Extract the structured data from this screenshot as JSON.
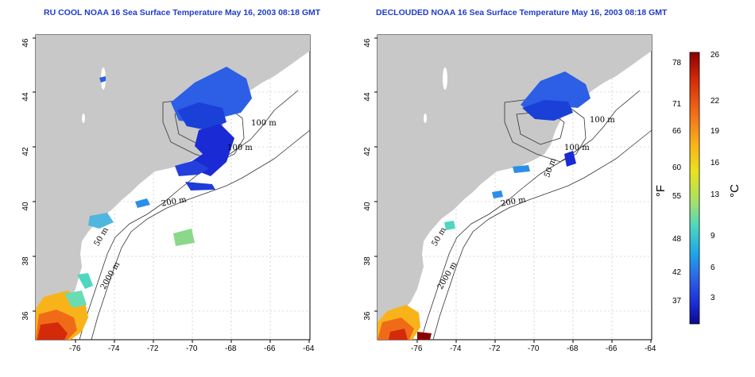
{
  "maps": [
    {
      "id": "left",
      "title": "RU COOL NOAA 16 Sea Surface Temperature May 16, 2003 08:18 GMT",
      "x_ticks": [
        "-76",
        "-74",
        "-72",
        "-70",
        "-68",
        "-66",
        "-64"
      ],
      "y_ticks": [
        "46",
        "44",
        "42",
        "40",
        "38",
        "36"
      ],
      "isobaths": [
        "100 m",
        "100 m",
        "200 m",
        "50 m",
        "2000 m"
      ]
    },
    {
      "id": "right",
      "title": "DECLOUDED NOAA 16 Sea Surface Temperature May 16, 2003 08:18 GMT",
      "x_ticks": [
        "-76",
        "-74",
        "-72",
        "-70",
        "-68",
        "-66",
        "-64"
      ],
      "y_ticks": [
        "46",
        "44",
        "42",
        "40",
        "38",
        "36"
      ],
      "isobaths": [
        "100 m",
        "100 m",
        "200 m",
        "50 m",
        "50 m",
        "2000 m"
      ]
    }
  ],
  "colorbar": {
    "fahrenheit_ticks": [
      "78",
      "71",
      "66",
      "60",
      "55",
      "48",
      "42",
      "37"
    ],
    "celsius_ticks": [
      "26",
      "22",
      "19",
      "16",
      "13",
      "9",
      "6",
      "3"
    ],
    "fahrenheit_unit": "°F",
    "celsius_unit": "°C",
    "colors": [
      "#8b0000",
      "#d42a0a",
      "#f06b18",
      "#f8b31a",
      "#e8e31e",
      "#a6e06a",
      "#4fd6c0",
      "#1ea6e8",
      "#2c5ee6",
      "#1a2ad4",
      "#0a0a8c"
    ]
  }
}
